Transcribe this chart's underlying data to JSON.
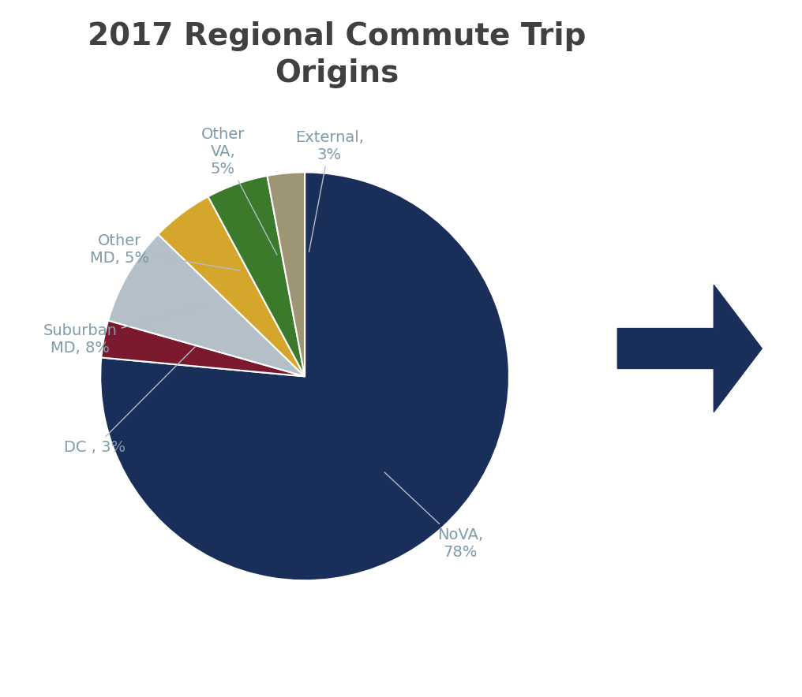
{
  "title": "2017 Regional Commute Trip\nOrigins",
  "title_fontsize": 28,
  "title_color": "#404040",
  "slices": [
    {
      "label": "NoVA,\n78%",
      "value": 78,
      "color": "#1a2e5a"
    },
    {
      "label": "DC , 3%",
      "value": 3,
      "color": "#7b1a2e"
    },
    {
      "label": "Suburban\nMD, 8%",
      "value": 8,
      "color": "#b5bfc8"
    },
    {
      "label": "Other\nMD, 5%",
      "value": 5,
      "color": "#d4a72c"
    },
    {
      "label": "Other\nVA,\n5%",
      "value": 5,
      "color": "#3a7a2a"
    },
    {
      "label": "External,\n3%",
      "value": 3,
      "color": "#9e9575"
    }
  ],
  "label_color": "#7f9aaa",
  "label_fontsize": 14,
  "background_color": "#ffffff",
  "arrow_color": "#1a2e5a",
  "startangle": 90
}
